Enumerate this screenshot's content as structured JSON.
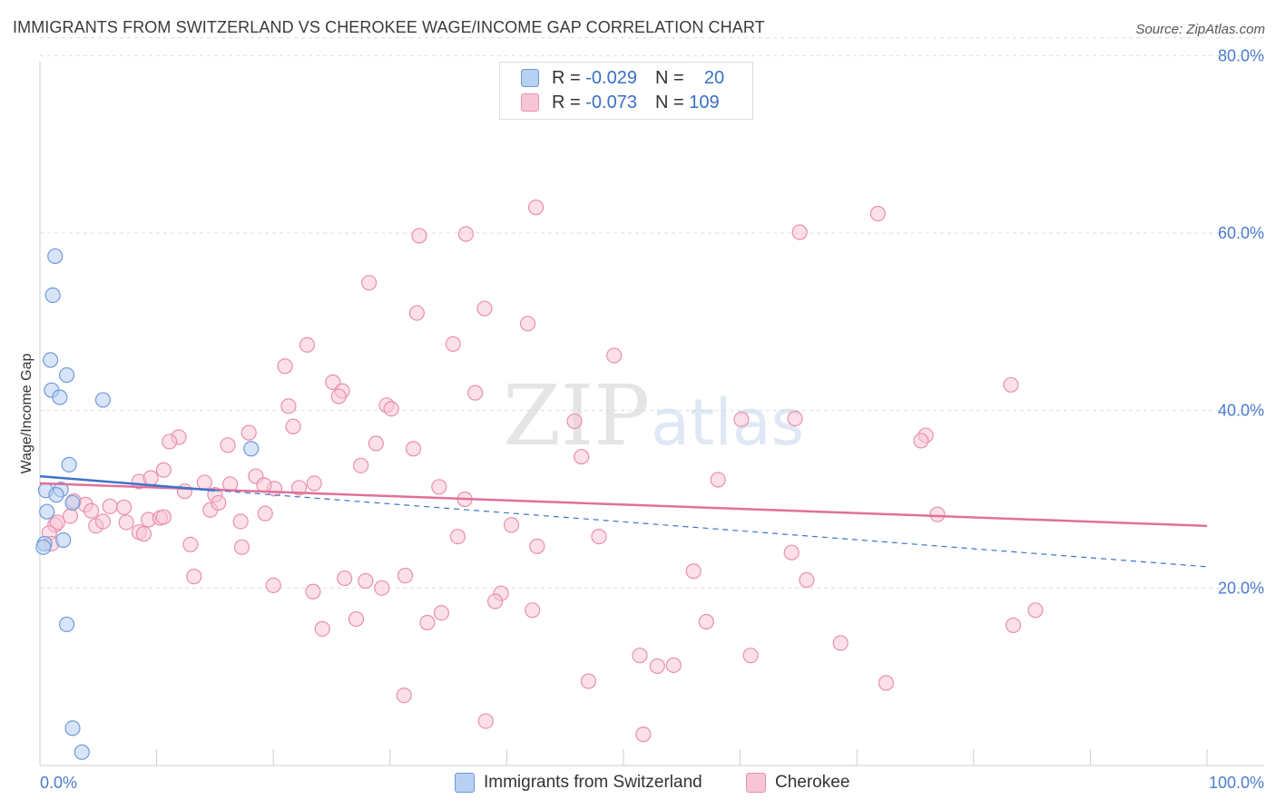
{
  "header": {
    "title": "IMMIGRANTS FROM SWITZERLAND VS CHEROKEE WAGE/INCOME GAP CORRELATION CHART",
    "source": "Source: ZipAtlas.com"
  },
  "legend": {
    "rows": [
      {
        "r_label": "R =",
        "r_value": "-0.029",
        "n_label": "N =",
        "n_value": "20"
      },
      {
        "r_label": "R =",
        "r_value": "-0.073",
        "n_label": "N =",
        "n_value": "109"
      }
    ]
  },
  "watermark": {
    "zip": "ZIP",
    "atlas": "atlas"
  },
  "colors": {
    "blue_fill": "#b8d0f2",
    "blue_stroke": "#6f9ad8",
    "blue_line": "#3d73c9",
    "pink_fill": "#f7c6d6",
    "pink_stroke": "#e98fae",
    "pink_line": "#e0709a",
    "axis_text": "#4b7bd0",
    "grid": "#dddddd"
  },
  "chart_data": {
    "type": "scatter",
    "title": "IMMIGRANTS FROM SWITZERLAND VS CHEROKEE WAGE/INCOME GAP CORRELATION CHART",
    "xlabel": "",
    "ylabel": "Wage/Income Gap",
    "xlim": [
      0,
      100
    ],
    "ylim": [
      0,
      83
    ],
    "x_tick_labels": [
      "0.0%",
      "100.0%"
    ],
    "y_ticks": [
      20,
      40,
      60,
      80
    ],
    "y_tick_labels": [
      "20.0%",
      "40.0%",
      "60.0%",
      "80.0%"
    ],
    "grid": true,
    "series": [
      {
        "name": "Immigrants from Switzerland",
        "r": -0.029,
        "n": 20,
        "trend_solid": {
          "x": [
            0,
            15
          ],
          "y": [
            32.6,
            31.0
          ]
        },
        "trend_dashed": {
          "x": [
            15,
            100
          ],
          "y": [
            31.0,
            22.4
          ]
        },
        "points": [
          {
            "x": 1.3,
            "y": 57.4
          },
          {
            "x": 1.1,
            "y": 53.0
          },
          {
            "x": 0.9,
            "y": 45.7
          },
          {
            "x": 2.3,
            "y": 44.0
          },
          {
            "x": 1.0,
            "y": 42.3
          },
          {
            "x": 1.7,
            "y": 41.5
          },
          {
            "x": 5.4,
            "y": 41.2
          },
          {
            "x": 18.1,
            "y": 35.7
          },
          {
            "x": 2.5,
            "y": 33.9
          },
          {
            "x": 0.5,
            "y": 31.0
          },
          {
            "x": 1.8,
            "y": 31.1
          },
          {
            "x": 1.4,
            "y": 30.5
          },
          {
            "x": 2.8,
            "y": 29.6
          },
          {
            "x": 0.6,
            "y": 28.6
          },
          {
            "x": 2.0,
            "y": 25.4
          },
          {
            "x": 0.4,
            "y": 25.0
          },
          {
            "x": 2.3,
            "y": 15.9
          },
          {
            "x": 2.8,
            "y": 4.2
          },
          {
            "x": 3.6,
            "y": 1.5
          },
          {
            "x": 0.3,
            "y": 24.6
          }
        ]
      },
      {
        "name": "Cherokee",
        "r": -0.073,
        "n": 109,
        "trend_solid": {
          "x": [
            0,
            100
          ],
          "y": [
            31.8,
            27.0
          ]
        },
        "points": [
          {
            "x": 42.5,
            "y": 62.9
          },
          {
            "x": 65.1,
            "y": 60.1
          },
          {
            "x": 71.8,
            "y": 62.2
          },
          {
            "x": 32.5,
            "y": 59.7
          },
          {
            "x": 36.5,
            "y": 59.9
          },
          {
            "x": 28.2,
            "y": 54.4
          },
          {
            "x": 32.3,
            "y": 51.0
          },
          {
            "x": 38.1,
            "y": 51.5
          },
          {
            "x": 41.8,
            "y": 49.8
          },
          {
            "x": 22.9,
            "y": 47.4
          },
          {
            "x": 35.4,
            "y": 47.5
          },
          {
            "x": 49.2,
            "y": 46.2
          },
          {
            "x": 21.0,
            "y": 45.0
          },
          {
            "x": 25.1,
            "y": 43.2
          },
          {
            "x": 25.9,
            "y": 42.2
          },
          {
            "x": 25.6,
            "y": 41.6
          },
          {
            "x": 37.3,
            "y": 42.0
          },
          {
            "x": 83.2,
            "y": 42.9
          },
          {
            "x": 21.3,
            "y": 40.5
          },
          {
            "x": 29.7,
            "y": 40.6
          },
          {
            "x": 30.1,
            "y": 40.2
          },
          {
            "x": 64.7,
            "y": 39.1
          },
          {
            "x": 45.8,
            "y": 38.8
          },
          {
            "x": 21.7,
            "y": 38.2
          },
          {
            "x": 11.9,
            "y": 37.0
          },
          {
            "x": 17.9,
            "y": 37.5
          },
          {
            "x": 75.9,
            "y": 37.2
          },
          {
            "x": 11.1,
            "y": 36.5
          },
          {
            "x": 16.1,
            "y": 36.1
          },
          {
            "x": 28.8,
            "y": 36.3
          },
          {
            "x": 32.0,
            "y": 35.7
          },
          {
            "x": 75.5,
            "y": 36.6
          },
          {
            "x": 46.4,
            "y": 34.8
          },
          {
            "x": 27.5,
            "y": 33.8
          },
          {
            "x": 10.6,
            "y": 33.3
          },
          {
            "x": 18.5,
            "y": 32.6
          },
          {
            "x": 58.1,
            "y": 32.2
          },
          {
            "x": 8.5,
            "y": 32.0
          },
          {
            "x": 9.5,
            "y": 32.4
          },
          {
            "x": 14.1,
            "y": 31.9
          },
          {
            "x": 16.3,
            "y": 31.7
          },
          {
            "x": 23.5,
            "y": 31.8
          },
          {
            "x": 20.1,
            "y": 31.2
          },
          {
            "x": 22.2,
            "y": 31.3
          },
          {
            "x": 34.2,
            "y": 31.4
          },
          {
            "x": 19.2,
            "y": 31.6
          },
          {
            "x": 12.4,
            "y": 30.9
          },
          {
            "x": 15.0,
            "y": 30.5
          },
          {
            "x": 36.4,
            "y": 30.0
          },
          {
            "x": 2.9,
            "y": 29.8
          },
          {
            "x": 3.9,
            "y": 29.4
          },
          {
            "x": 4.4,
            "y": 28.7
          },
          {
            "x": 6.0,
            "y": 29.2
          },
          {
            "x": 7.2,
            "y": 29.1
          },
          {
            "x": 14.6,
            "y": 28.8
          },
          {
            "x": 15.3,
            "y": 29.6
          },
          {
            "x": 2.6,
            "y": 28.1
          },
          {
            "x": 9.3,
            "y": 27.7
          },
          {
            "x": 10.3,
            "y": 27.9
          },
          {
            "x": 10.6,
            "y": 28.0
          },
          {
            "x": 19.3,
            "y": 28.4
          },
          {
            "x": 76.9,
            "y": 28.3
          },
          {
            "x": 1.3,
            "y": 27.1
          },
          {
            "x": 1.5,
            "y": 27.4
          },
          {
            "x": 4.8,
            "y": 27.0
          },
          {
            "x": 5.4,
            "y": 27.5
          },
          {
            "x": 7.4,
            "y": 27.4
          },
          {
            "x": 17.2,
            "y": 27.5
          },
          {
            "x": 40.4,
            "y": 27.1
          },
          {
            "x": 8.5,
            "y": 26.3
          },
          {
            "x": 8.9,
            "y": 26.1
          },
          {
            "x": 0.8,
            "y": 26.2
          },
          {
            "x": 35.8,
            "y": 25.8
          },
          {
            "x": 47.9,
            "y": 25.8
          },
          {
            "x": 1.0,
            "y": 25.0
          },
          {
            "x": 12.9,
            "y": 24.9
          },
          {
            "x": 17.3,
            "y": 24.6
          },
          {
            "x": 42.6,
            "y": 24.7
          },
          {
            "x": 64.4,
            "y": 24.0
          },
          {
            "x": 56.0,
            "y": 21.9
          },
          {
            "x": 13.2,
            "y": 21.3
          },
          {
            "x": 26.1,
            "y": 21.1
          },
          {
            "x": 27.9,
            "y": 20.8
          },
          {
            "x": 31.3,
            "y": 21.4
          },
          {
            "x": 20.0,
            "y": 20.3
          },
          {
            "x": 29.3,
            "y": 20.0
          },
          {
            "x": 23.4,
            "y": 19.6
          },
          {
            "x": 65.7,
            "y": 20.9
          },
          {
            "x": 39.5,
            "y": 19.4
          },
          {
            "x": 39.0,
            "y": 18.5
          },
          {
            "x": 42.2,
            "y": 17.5
          },
          {
            "x": 34.4,
            "y": 17.2
          },
          {
            "x": 27.1,
            "y": 16.5
          },
          {
            "x": 33.2,
            "y": 16.1
          },
          {
            "x": 24.2,
            "y": 15.4
          },
          {
            "x": 57.1,
            "y": 16.2
          },
          {
            "x": 85.3,
            "y": 17.5
          },
          {
            "x": 83.4,
            "y": 15.8
          },
          {
            "x": 68.6,
            "y": 13.8
          },
          {
            "x": 51.4,
            "y": 12.4
          },
          {
            "x": 60.9,
            "y": 12.4
          },
          {
            "x": 52.9,
            "y": 11.2
          },
          {
            "x": 54.3,
            "y": 11.3
          },
          {
            "x": 47.0,
            "y": 9.5
          },
          {
            "x": 72.5,
            "y": 9.3
          },
          {
            "x": 31.2,
            "y": 7.9
          },
          {
            "x": 38.2,
            "y": 5.0
          },
          {
            "x": 51.7,
            "y": 3.5
          },
          {
            "x": 60.1,
            "y": 39.0
          }
        ]
      }
    ]
  }
}
